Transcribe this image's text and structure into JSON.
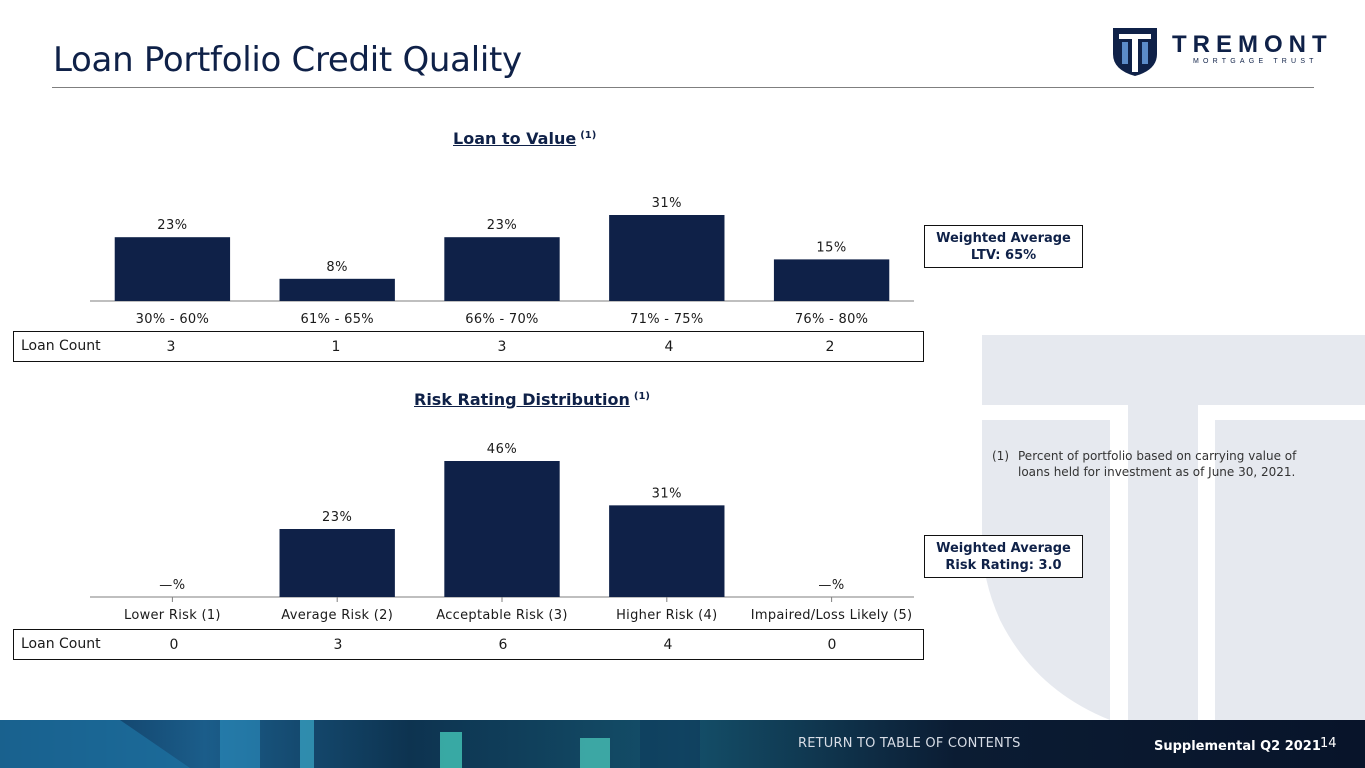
{
  "page": {
    "title": "Loan Portfolio Credit Quality",
    "logo_word": "TREMONT",
    "logo_sub": "MORTGAGE TRUST"
  },
  "colors": {
    "bar": "#0f2148",
    "axis": "#7f7f7f",
    "accent": "#0f2148"
  },
  "ltv": {
    "title": "Loan to Value",
    "note_ref": "(1)",
    "count_label": "Loan Count",
    "counts": [
      "3",
      "1",
      "3",
      "4",
      "2"
    ],
    "callout_line1": "Weighted Average",
    "callout_line2": "LTV: 65%"
  },
  "risk": {
    "title": "Risk Rating Distribution",
    "note_ref": "(1)",
    "count_label": "Loan Count",
    "counts": [
      "0",
      "3",
      "6",
      "4",
      "0"
    ],
    "callout_line1": "Weighted Average",
    "callout_line2": "Risk Rating: 3.0"
  },
  "footnote": {
    "num": "(1)",
    "text": "Percent of portfolio based on carrying value of loans held for investment  as of June 30, 2021."
  },
  "footer": {
    "link": "RETURN TO TABLE OF CONTENTS",
    "supplemental": "Supplemental Q2 2021",
    "page_number": "14"
  },
  "chart_data": [
    {
      "type": "bar",
      "title": "Loan to Value",
      "categories": [
        "30% - 60%",
        "61% - 65%",
        "66% - 70%",
        "71% - 75%",
        "76% - 80%"
      ],
      "values": [
        23,
        8,
        23,
        31,
        15
      ],
      "labels": [
        "23%",
        "8%",
        "23%",
        "31%",
        "15%"
      ],
      "ylim": [
        0,
        31
      ],
      "grid": false
    },
    {
      "type": "bar",
      "title": "Risk Rating Distribution",
      "categories": [
        "Lower Risk (1)",
        "Average Risk (2)",
        "Acceptable Risk (3)",
        "Higher Risk (4)",
        "Impaired/Loss Likely (5)"
      ],
      "values": [
        0,
        23,
        46,
        31,
        0
      ],
      "labels": [
        "—%",
        "23%",
        "46%",
        "31%",
        "—%"
      ],
      "ylim": [
        0,
        46
      ],
      "grid": false
    }
  ]
}
